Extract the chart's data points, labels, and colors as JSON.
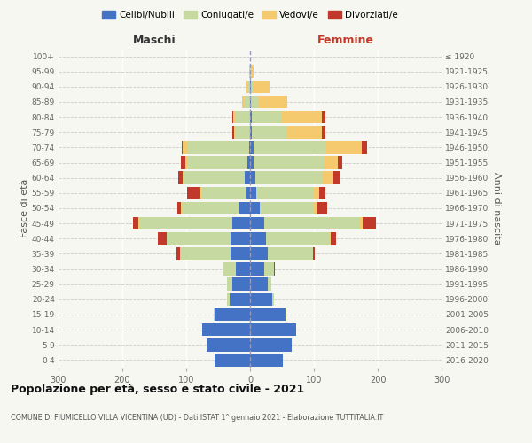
{
  "age_groups": [
    "0-4",
    "5-9",
    "10-14",
    "15-19",
    "20-24",
    "25-29",
    "30-34",
    "35-39",
    "40-44",
    "45-49",
    "50-54",
    "55-59",
    "60-64",
    "65-69",
    "70-74",
    "75-79",
    "80-84",
    "85-89",
    "90-94",
    "95-99",
    "100+"
  ],
  "birth_years": [
    "2016-2020",
    "2011-2015",
    "2006-2010",
    "2001-2005",
    "1996-2000",
    "1991-1995",
    "1986-1990",
    "1981-1985",
    "1976-1980",
    "1971-1975",
    "1966-1970",
    "1961-1965",
    "1956-1960",
    "1951-1955",
    "1946-1950",
    "1941-1945",
    "1936-1940",
    "1931-1935",
    "1926-1930",
    "1921-1925",
    "≤ 1920"
  ],
  "male": {
    "celibi": [
      55,
      68,
      75,
      55,
      32,
      28,
      22,
      30,
      30,
      28,
      18,
      6,
      8,
      4,
      2,
      0,
      0,
      0,
      0,
      0,
      0
    ],
    "coniugati": [
      0,
      0,
      0,
      2,
      4,
      8,
      20,
      80,
      100,
      145,
      88,
      70,
      95,
      95,
      95,
      22,
      22,
      8,
      3,
      1,
      0
    ],
    "vedovi": [
      0,
      0,
      0,
      0,
      0,
      0,
      0,
      0,
      0,
      2,
      2,
      2,
      2,
      2,
      8,
      3,
      4,
      5,
      3,
      0,
      0
    ],
    "divorziati": [
      0,
      0,
      0,
      0,
      0,
      0,
      0,
      5,
      15,
      8,
      6,
      20,
      8,
      8,
      2,
      3,
      2,
      0,
      0,
      0,
      0
    ]
  },
  "female": {
    "nubili": [
      52,
      65,
      72,
      55,
      35,
      28,
      22,
      28,
      25,
      22,
      15,
      10,
      8,
      5,
      5,
      3,
      3,
      2,
      1,
      0,
      0
    ],
    "coniugate": [
      0,
      0,
      0,
      2,
      3,
      5,
      15,
      70,
      100,
      150,
      85,
      90,
      105,
      110,
      115,
      55,
      45,
      12,
      5,
      2,
      0
    ],
    "vedove": [
      0,
      0,
      0,
      0,
      0,
      0,
      0,
      0,
      2,
      5,
      6,
      8,
      18,
      22,
      55,
      55,
      65,
      45,
      25,
      4,
      0
    ],
    "divorziate": [
      0,
      0,
      0,
      0,
      0,
      0,
      2,
      4,
      8,
      20,
      15,
      10,
      10,
      8,
      8,
      5,
      5,
      0,
      0,
      0,
      0
    ]
  },
  "colors": {
    "celibi": "#4472c4",
    "coniugati": "#c5d9a0",
    "vedovi": "#f5c96e",
    "divorziati": "#c0392b"
  },
  "title": "Popolazione per età, sesso e stato civile - 2021",
  "subtitle": "COMUNE DI FIUMICELLO VILLA VICENTINA (UD) - Dati ISTAT 1° gennaio 2021 - Elaborazione TUTTITALIA.IT",
  "xlabel_left": "Maschi",
  "xlabel_right": "Femmine",
  "ylabel_left": "Fasce di età",
  "ylabel_right": "Anni di nascita",
  "xlim": 300,
  "bg_color": "#f7f7f2",
  "legend_labels": [
    "Celibi/Nubili",
    "Coniugati/e",
    "Vedovi/e",
    "Divorziati/e"
  ]
}
